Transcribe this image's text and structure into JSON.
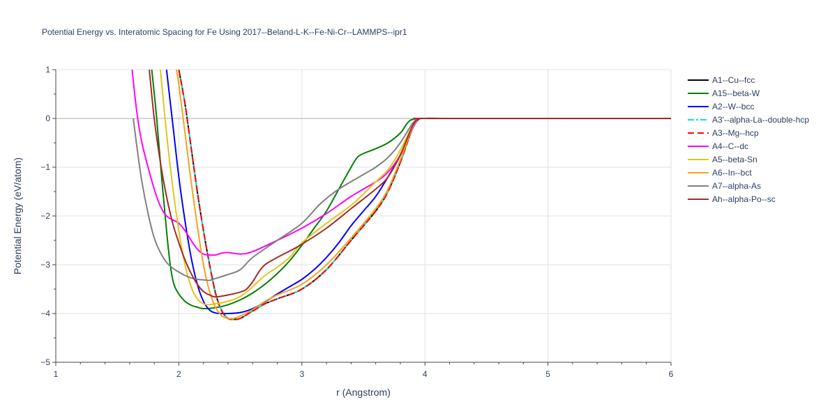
{
  "chart_data": {
    "type": "line",
    "title": "Potential Energy vs. Interatomic Spacing for Fe Using 2017--Beland-L-K--Fe-Ni-Cr--LAMMPS--ipr1",
    "xlabel": "r (Angstrom)",
    "ylabel": "Potential Energy (eV/atom)",
    "xlim": [
      1,
      6
    ],
    "ylim": [
      -5,
      1
    ],
    "x_ticks": [
      1,
      2,
      3,
      4,
      5,
      6
    ],
    "y_ticks": [
      -5,
      -4,
      -3,
      -2,
      -1,
      0,
      1
    ],
    "x_tick_labels": [
      "1",
      "2",
      "3",
      "4",
      "5",
      "6"
    ],
    "y_tick_labels": [
      "−5",
      "−4",
      "−3",
      "−2",
      "−1",
      "0",
      "1"
    ],
    "grid": true,
    "legend_position": "right",
    "series": [
      {
        "name": "A1--Cu--fcc",
        "color": "#000000",
        "dash": "solid",
        "x": [
          2.0,
          2.05,
          2.1,
          2.15,
          2.2,
          2.25,
          2.3,
          2.35,
          2.4,
          2.45,
          2.5,
          2.6,
          2.7,
          2.8,
          3.0,
          3.2,
          3.4,
          3.6,
          3.7,
          3.8,
          3.9,
          3.95,
          4.0,
          4.2,
          5.0,
          6.0
        ],
        "y": [
          1.0,
          0.3,
          -0.6,
          -1.5,
          -2.3,
          -3.0,
          -3.6,
          -3.95,
          -4.1,
          -4.12,
          -4.1,
          -3.95,
          -3.8,
          -3.7,
          -3.5,
          -3.1,
          -2.5,
          -1.9,
          -1.5,
          -0.9,
          -0.2,
          -0.02,
          0.0,
          0.0,
          0.0,
          0.0
        ]
      },
      {
        "name": "A15--beta-W",
        "color": "#008000",
        "dash": "solid",
        "x": [
          1.78,
          1.82,
          1.86,
          1.9,
          1.93,
          1.96,
          2.0,
          2.05,
          2.1,
          2.15,
          2.2,
          2.3,
          2.4,
          2.5,
          2.6,
          2.7,
          2.8,
          2.9,
          3.0,
          3.1,
          3.2,
          3.3,
          3.4,
          3.45,
          3.5,
          3.6,
          3.7,
          3.8,
          3.85,
          3.88,
          3.92,
          3.95,
          4.0,
          5.0,
          6.0
        ],
        "y": [
          1.0,
          0.0,
          -1.2,
          -2.3,
          -3.0,
          -3.4,
          -3.6,
          -3.75,
          -3.83,
          -3.87,
          -3.9,
          -3.88,
          -3.82,
          -3.72,
          -3.58,
          -3.4,
          -3.18,
          -2.92,
          -2.6,
          -2.25,
          -1.9,
          -1.45,
          -1.0,
          -0.8,
          -0.72,
          -0.62,
          -0.5,
          -0.3,
          -0.12,
          -0.04,
          -0.01,
          0.0,
          0.0,
          0.0,
          0.0
        ]
      },
      {
        "name": "A2--W--bcc",
        "color": "#0000ff",
        "dash": "solid",
        "x": [
          1.9,
          1.95,
          2.0,
          2.05,
          2.1,
          2.15,
          2.2,
          2.25,
          2.3,
          2.35,
          2.4,
          2.5,
          2.6,
          2.7,
          2.8,
          2.9,
          3.0,
          3.1,
          3.2,
          3.3,
          3.4,
          3.5,
          3.6,
          3.7,
          3.8,
          3.9,
          3.95,
          4.0,
          5.0,
          6.0
        ],
        "y": [
          1.0,
          -0.1,
          -1.2,
          -2.1,
          -2.85,
          -3.4,
          -3.75,
          -3.93,
          -3.99,
          -4.0,
          -4.0,
          -3.98,
          -3.9,
          -3.76,
          -3.6,
          -3.45,
          -3.3,
          -3.1,
          -2.85,
          -2.55,
          -2.2,
          -1.9,
          -1.6,
          -1.2,
          -0.75,
          -0.2,
          -0.02,
          0.0,
          0.0,
          0.0
        ]
      },
      {
        "name": "A3'--alpha-La--double-hcp",
        "color": "#00e5ee",
        "dash": "dashdot",
        "x": [
          2.0,
          2.05,
          2.1,
          2.15,
          2.2,
          2.25,
          2.3,
          2.35,
          2.4,
          2.45,
          2.5,
          2.6,
          2.7,
          2.8,
          3.0,
          3.2,
          3.4,
          3.6,
          3.7,
          3.8,
          3.9,
          3.95,
          4.0,
          4.2,
          5.0,
          6.0
        ],
        "y": [
          1.0,
          0.3,
          -0.6,
          -1.5,
          -2.3,
          -3.0,
          -3.6,
          -3.95,
          -4.1,
          -4.12,
          -4.1,
          -3.95,
          -3.8,
          -3.7,
          -3.5,
          -3.1,
          -2.5,
          -1.9,
          -1.5,
          -0.9,
          -0.2,
          -0.02,
          0.0,
          0.0,
          0.0,
          0.0
        ]
      },
      {
        "name": "A3--Mg--hcp",
        "color": "#ff0000",
        "dash": "dash",
        "x": [
          2.0,
          2.05,
          2.1,
          2.15,
          2.2,
          2.25,
          2.3,
          2.35,
          2.4,
          2.45,
          2.5,
          2.6,
          2.7,
          2.8,
          3.0,
          3.2,
          3.4,
          3.6,
          3.7,
          3.8,
          3.9,
          3.95,
          4.0,
          4.2,
          5.0,
          6.0
        ],
        "y": [
          1.0,
          0.3,
          -0.6,
          -1.5,
          -2.3,
          -3.0,
          -3.6,
          -3.95,
          -4.1,
          -4.12,
          -4.1,
          -3.95,
          -3.8,
          -3.7,
          -3.5,
          -3.1,
          -2.5,
          -1.9,
          -1.5,
          -0.9,
          -0.2,
          -0.02,
          0.0,
          0.0,
          0.0,
          0.0
        ]
      },
      {
        "name": "A4--C--dc",
        "color": "#ff00ff",
        "dash": "solid",
        "x": [
          1.62,
          1.66,
          1.7,
          1.75,
          1.8,
          1.85,
          1.9,
          1.95,
          2.0,
          2.05,
          2.1,
          2.15,
          2.2,
          2.25,
          2.3,
          2.35,
          2.4,
          2.5,
          2.6,
          2.8,
          3.0,
          3.2,
          3.4,
          3.6,
          3.7,
          3.8,
          3.9,
          3.95,
          4.0,
          5.0,
          6.0
        ],
        "y": [
          1.0,
          0.1,
          -0.5,
          -1.0,
          -1.45,
          -1.8,
          -2.0,
          -2.08,
          -2.15,
          -2.3,
          -2.5,
          -2.68,
          -2.78,
          -2.8,
          -2.8,
          -2.76,
          -2.75,
          -2.78,
          -2.73,
          -2.5,
          -2.25,
          -1.95,
          -1.6,
          -1.3,
          -1.1,
          -0.75,
          -0.2,
          -0.02,
          0.0,
          0.0,
          0.0
        ]
      },
      {
        "name": "A5--beta-Sn",
        "color": "#e6c419",
        "dash": "solid",
        "x": [
          1.85,
          1.9,
          1.95,
          2.0,
          2.05,
          2.1,
          2.15,
          2.2,
          2.25,
          2.3,
          2.4,
          2.5,
          2.6,
          2.7,
          2.8,
          2.9,
          3.0,
          3.2,
          3.4,
          3.5,
          3.6,
          3.7,
          3.8,
          3.9,
          3.95,
          4.0,
          5.0,
          6.0
        ],
        "y": [
          1.0,
          -0.3,
          -1.4,
          -2.3,
          -3.0,
          -3.45,
          -3.7,
          -3.8,
          -3.82,
          -3.8,
          -3.75,
          -3.65,
          -3.45,
          -3.22,
          -3.05,
          -2.85,
          -2.55,
          -2.15,
          -1.78,
          -1.55,
          -1.3,
          -1.05,
          -0.65,
          -0.15,
          -0.02,
          0.0,
          0.0,
          0.0
        ]
      },
      {
        "name": "A6--In--bct",
        "color": "#f5a31a",
        "dash": "solid",
        "x": [
          1.98,
          2.0,
          2.05,
          2.1,
          2.15,
          2.2,
          2.25,
          2.3,
          2.35,
          2.4,
          2.45,
          2.5,
          2.6,
          2.7,
          2.8,
          3.0,
          3.2,
          3.4,
          3.6,
          3.7,
          3.8,
          3.9,
          3.95,
          4.0,
          5.0,
          6.0
        ],
        "y": [
          1.0,
          0.7,
          -0.3,
          -1.3,
          -2.2,
          -3.0,
          -3.55,
          -3.88,
          -4.05,
          -4.1,
          -4.1,
          -4.05,
          -3.92,
          -3.75,
          -3.62,
          -3.4,
          -3.0,
          -2.45,
          -1.85,
          -1.45,
          -0.85,
          -0.18,
          -0.02,
          0.0,
          0.0,
          0.0
        ]
      },
      {
        "name": "A7--alpha-As",
        "color": "#808080",
        "dash": "solid",
        "x": [
          1.63,
          1.66,
          1.7,
          1.75,
          1.8,
          1.85,
          1.9,
          1.95,
          2.0,
          2.05,
          2.1,
          2.15,
          2.2,
          2.25,
          2.3,
          2.4,
          2.5,
          2.6,
          2.8,
          3.0,
          3.15,
          3.3,
          3.5,
          3.6,
          3.7,
          3.8,
          3.9,
          3.95,
          4.0,
          5.0,
          6.0
        ],
        "y": [
          0.0,
          -0.6,
          -1.3,
          -1.95,
          -2.45,
          -2.75,
          -2.95,
          -3.07,
          -3.15,
          -3.22,
          -3.27,
          -3.3,
          -3.31,
          -3.32,
          -3.28,
          -3.2,
          -3.1,
          -2.85,
          -2.5,
          -2.15,
          -1.75,
          -1.45,
          -1.15,
          -1.0,
          -0.8,
          -0.5,
          -0.1,
          -0.01,
          0.0,
          0.0,
          0.0
        ]
      },
      {
        "name": "Ah--alpha-Po--sc",
        "color": "#a52a2a",
        "dash": "solid",
        "x": [
          1.76,
          1.8,
          1.85,
          1.9,
          1.95,
          2.0,
          2.05,
          2.1,
          2.15,
          2.2,
          2.25,
          2.3,
          2.4,
          2.5,
          2.55,
          2.6,
          2.65,
          2.7,
          2.8,
          2.9,
          3.0,
          3.2,
          3.4,
          3.6,
          3.7,
          3.8,
          3.9,
          3.95,
          4.0,
          5.0,
          6.0
        ],
        "y": [
          1.0,
          0.0,
          -0.9,
          -1.6,
          -2.15,
          -2.55,
          -2.9,
          -3.18,
          -3.4,
          -3.55,
          -3.62,
          -3.66,
          -3.62,
          -3.56,
          -3.5,
          -3.35,
          -3.15,
          -3.0,
          -2.85,
          -2.72,
          -2.58,
          -2.25,
          -1.85,
          -1.45,
          -1.2,
          -0.75,
          -0.15,
          -0.02,
          0.0,
          0.0,
          0.0
        ]
      }
    ]
  }
}
